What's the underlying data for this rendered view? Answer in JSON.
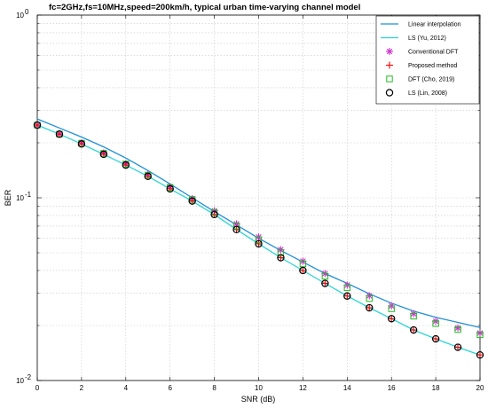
{
  "chart_data": {
    "type": "line",
    "title": "fc=2GHz,fs=10MHz,speed=200km/h, typical urban time-varying channel model",
    "xlabel": "SNR (dB)",
    "ylabel": "BER",
    "xlim": [
      0,
      20
    ],
    "ylim": [
      0.01,
      1
    ],
    "yscale": "log",
    "grid": true,
    "legend_position": "top-right",
    "x_ticks": [
      "0",
      "2",
      "4",
      "6",
      "8",
      "10",
      "12",
      "14",
      "16",
      "18",
      "20"
    ],
    "y_ticks": [
      {
        "base": "10",
        "exp": "-2"
      },
      {
        "base": "10",
        "exp": "-1"
      },
      {
        "base": "10",
        "exp": "0"
      }
    ],
    "x": [
      0,
      1,
      2,
      3,
      4,
      5,
      6,
      7,
      8,
      9,
      10,
      11,
      12,
      13,
      14,
      15,
      16,
      17,
      18,
      19,
      20
    ],
    "series": [
      {
        "name": "Linear interpolation",
        "style": "line",
        "color": "#1f8fd8",
        "values": [
          0.27,
          0.241,
          0.215,
          0.19,
          0.165,
          0.141,
          0.119,
          0.1,
          0.084,
          0.071,
          0.06,
          0.0515,
          0.0445,
          0.0385,
          0.034,
          0.0298,
          0.0265,
          0.024,
          0.0222,
          0.0208,
          0.0195
        ]
      },
      {
        "name": "LS (Yu, 2012)",
        "style": "line",
        "color": "#2ad4d4",
        "values": [
          0.25,
          0.223,
          0.197,
          0.173,
          0.151,
          0.131,
          0.112,
          0.096,
          0.081,
          0.067,
          0.056,
          0.047,
          0.04,
          0.034,
          0.029,
          0.025,
          0.0218,
          0.0189,
          0.0169,
          0.0152,
          0.0138
        ]
      },
      {
        "name": "Conventional DFT",
        "style": "marker",
        "marker": "asterisk",
        "color": "#cc33cc",
        "values": [
          0.25,
          0.224,
          0.2,
          0.176,
          0.154,
          0.134,
          0.115,
          0.099,
          0.085,
          0.072,
          0.061,
          0.052,
          0.045,
          0.0385,
          0.0333,
          0.0291,
          0.0256,
          0.0232,
          0.0211,
          0.0194,
          0.0182
        ]
      },
      {
        "name": "Proposed method",
        "style": "marker",
        "marker": "plus",
        "color": "#ff0000",
        "values": [
          0.25,
          0.223,
          0.197,
          0.173,
          0.151,
          0.131,
          0.112,
          0.096,
          0.081,
          0.067,
          0.056,
          0.047,
          0.04,
          0.034,
          0.029,
          0.025,
          0.0218,
          0.0189,
          0.0169,
          0.0152,
          0.0138
        ]
      },
      {
        "name": "DFT (Cho, 2019)",
        "style": "marker",
        "marker": "square",
        "color": "#22bb22",
        "values": [
          0.25,
          0.223,
          0.199,
          0.175,
          0.153,
          0.133,
          0.114,
          0.098,
          0.083,
          0.07,
          0.059,
          0.05,
          0.0435,
          0.0372,
          0.0322,
          0.0281,
          0.0247,
          0.0225,
          0.0205,
          0.019,
          0.0178
        ]
      },
      {
        "name": "LS (Lin, 2008)",
        "style": "marker",
        "marker": "circle",
        "color": "#000000",
        "values": [
          0.25,
          0.223,
          0.197,
          0.173,
          0.151,
          0.131,
          0.112,
          0.096,
          0.081,
          0.067,
          0.056,
          0.047,
          0.04,
          0.034,
          0.029,
          0.025,
          0.0218,
          0.0189,
          0.0169,
          0.0152,
          0.0138
        ]
      }
    ]
  }
}
